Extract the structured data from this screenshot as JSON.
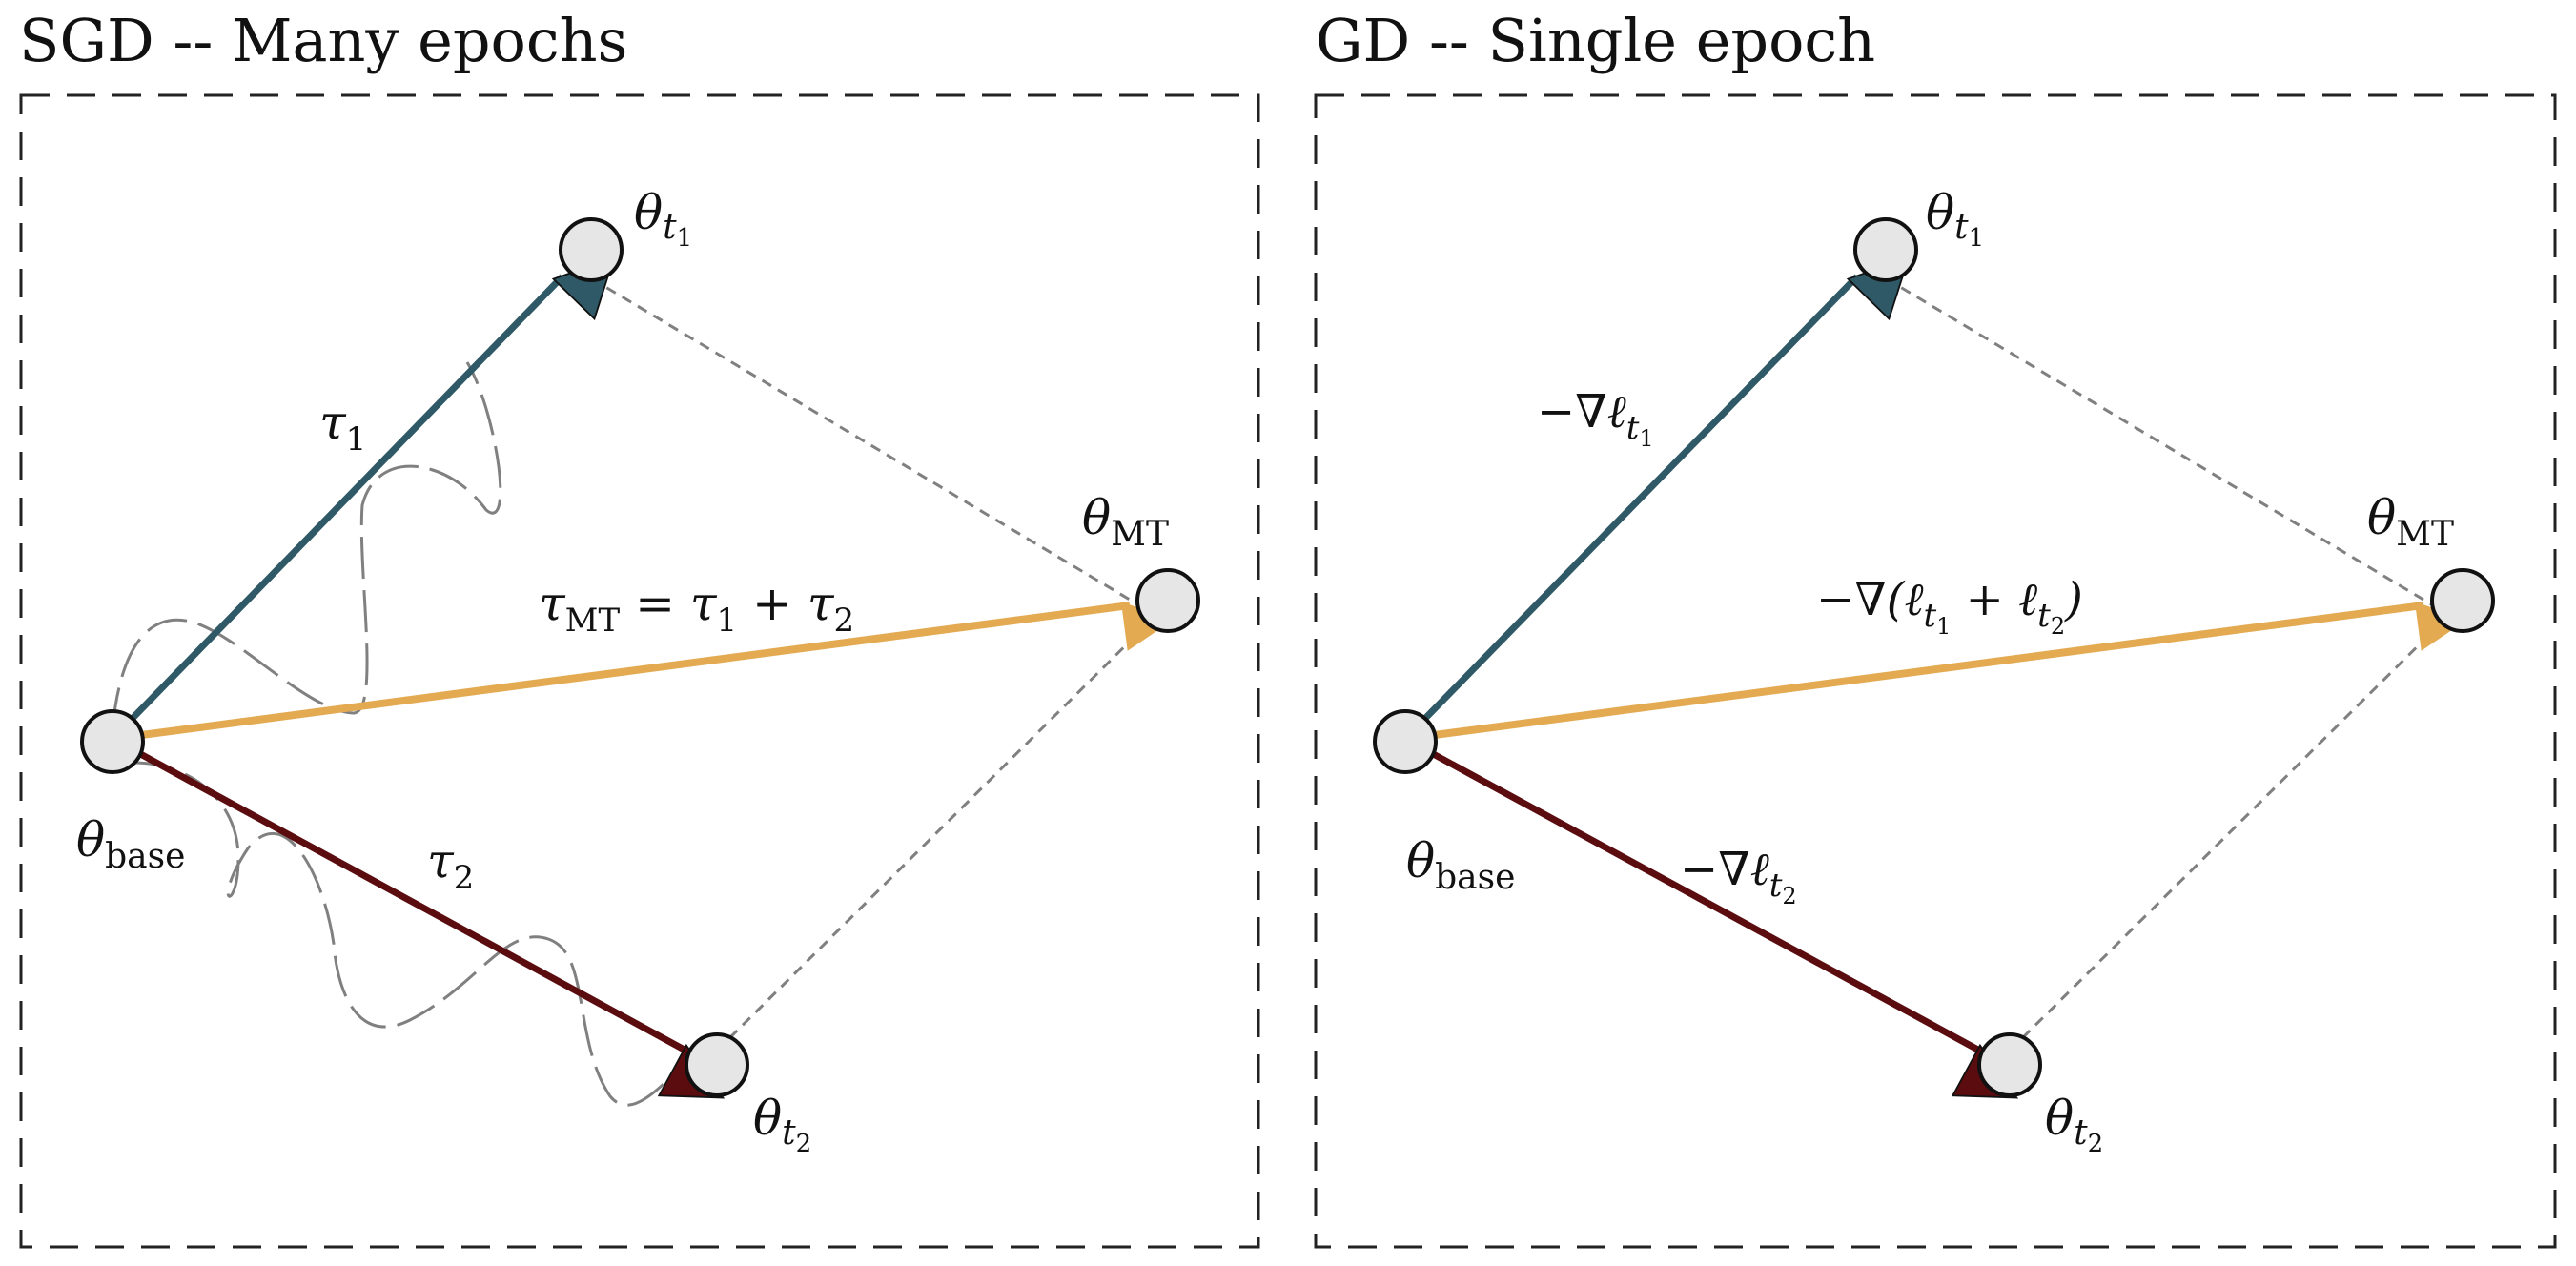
{
  "panels": [
    {
      "title": "SGD -- Many epochs",
      "nodes": {
        "base": {
          "main": "θ",
          "sub": "base"
        },
        "t1": {
          "main": "θ",
          "sub": "t",
          "subsub": "1"
        },
        "t2": {
          "main": "θ",
          "sub": "t",
          "subsub": "2"
        },
        "mt": {
          "main": "θ",
          "sub": "MT"
        }
      },
      "arrows": {
        "a1": {
          "main": "τ",
          "sub": "1"
        },
        "a2": {
          "main": "τ",
          "sub": "2"
        },
        "amt": {
          "pre": "τ",
          "sub": "MT",
          "rest": " = τ",
          "sub2": "1",
          "rest2": " + τ",
          "sub3": "2"
        }
      }
    },
    {
      "title": "GD -- Single epoch",
      "nodes": {
        "base": {
          "main": "θ",
          "sub": "base"
        },
        "t1": {
          "main": "θ",
          "sub": "t",
          "subsub": "1"
        },
        "t2": {
          "main": "θ",
          "sub": "t",
          "subsub": "2"
        },
        "mt": {
          "main": "θ",
          "sub": "MT"
        }
      },
      "arrows": {
        "a1": {
          "pre": "−∇ℓ",
          "sub": "t",
          "subsub": "1"
        },
        "a2": {
          "pre": "−∇ℓ",
          "sub": "t",
          "subsub": "2"
        },
        "amt": {
          "pre": "−∇(ℓ",
          "sub": "t",
          "subsub": "1",
          "mid": " + ℓ",
          "sub2": "t",
          "subsub2": "2",
          "post": ")"
        }
      }
    }
  ],
  "colors": {
    "task1": "#2f5966",
    "task2": "#5a0c0f",
    "multitask": "#e3aa52",
    "node_fill": "#e6e6e6",
    "dashed": "#808080"
  }
}
